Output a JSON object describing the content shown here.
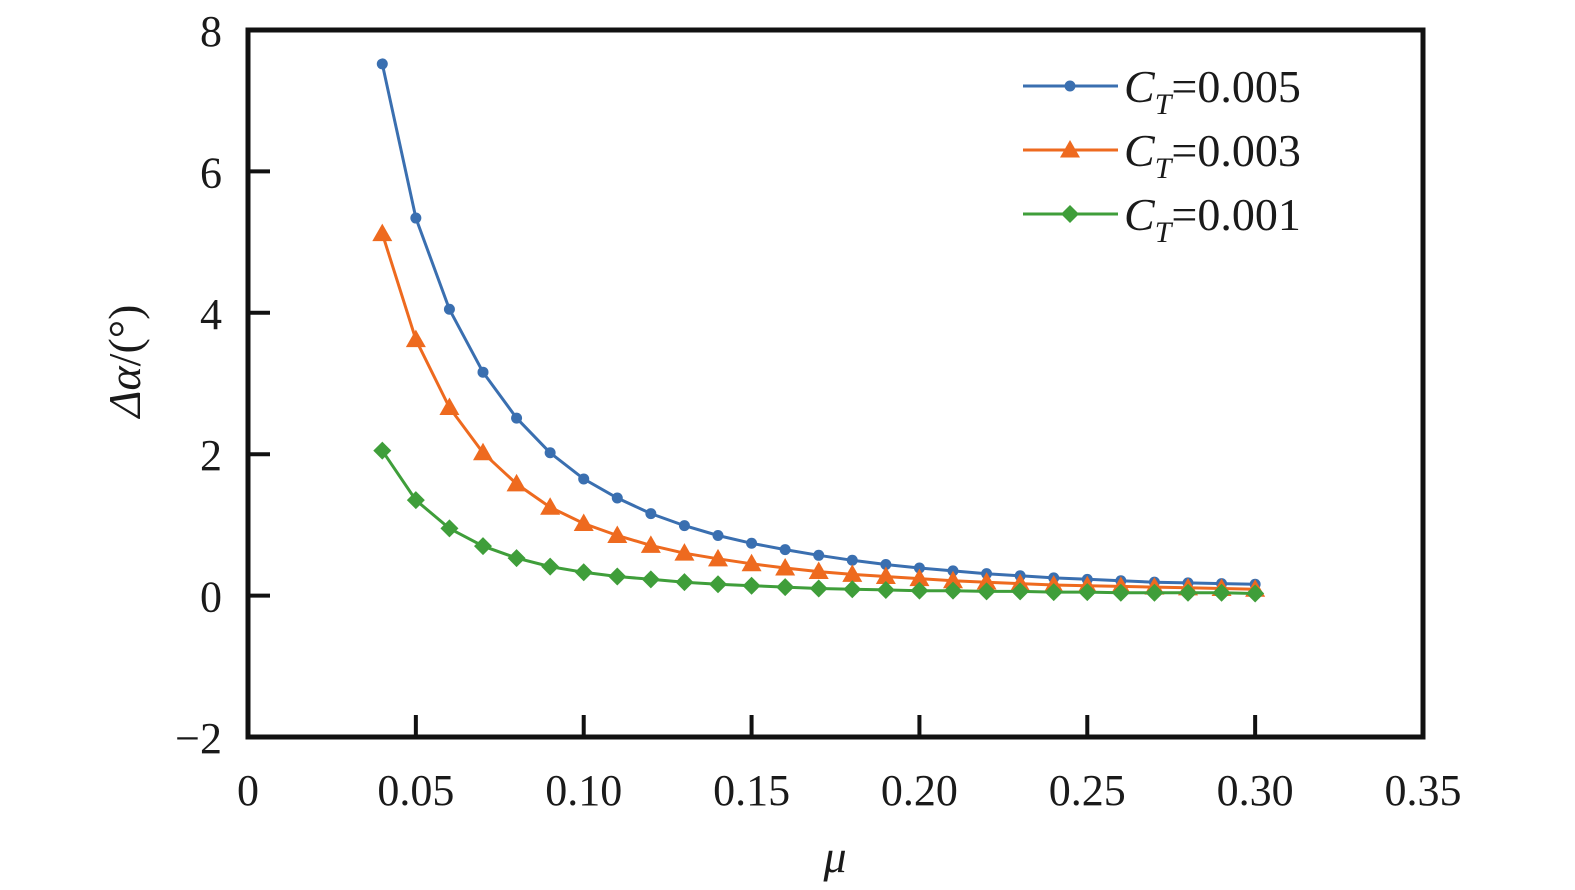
{
  "chart_data": {
    "type": "line",
    "xlabel": "μ",
    "ylabel_symbol": "Δα",
    "ylabel_unit": "/(°)",
    "xlim": [
      0,
      0.35
    ],
    "ylim": [
      -2,
      8
    ],
    "x_ticks": [
      0,
      0.05,
      0.1,
      0.15,
      0.2,
      0.25,
      0.3,
      0.35
    ],
    "x_tick_labels": [
      "0",
      "0.05",
      "0.10",
      "0.15",
      "0.20",
      "0.25",
      "0.30",
      "0.35"
    ],
    "y_ticks": [
      -2,
      0,
      2,
      4,
      6,
      8
    ],
    "y_tick_labels": [
      "−2",
      "0",
      "2",
      "4",
      "6",
      "8"
    ],
    "grid": false,
    "legend_position": "top-right",
    "x": [
      0.04,
      0.05,
      0.06,
      0.07,
      0.08,
      0.09,
      0.1,
      0.11,
      0.12,
      0.13,
      0.14,
      0.15,
      0.16,
      0.17,
      0.18,
      0.19,
      0.2,
      0.21,
      0.22,
      0.23,
      0.24,
      0.25,
      0.26,
      0.27,
      0.28,
      0.29,
      0.3
    ],
    "series": [
      {
        "name_symbol": "C",
        "name_subscript": "T",
        "name_value": "=0.005",
        "color": "#3a6fb0",
        "marker": "circle",
        "values": [
          7.52,
          5.34,
          4.05,
          3.16,
          2.51,
          2.02,
          1.65,
          1.38,
          1.16,
          0.99,
          0.85,
          0.74,
          0.65,
          0.57,
          0.5,
          0.44,
          0.39,
          0.35,
          0.31,
          0.28,
          0.25,
          0.23,
          0.21,
          0.19,
          0.18,
          0.17,
          0.16
        ]
      },
      {
        "name_symbol": "C",
        "name_subscript": "T",
        "name_value": "=0.003",
        "color": "#ee6a1f",
        "marker": "triangle",
        "values": [
          5.12,
          3.62,
          2.66,
          2.02,
          1.58,
          1.25,
          1.02,
          0.85,
          0.71,
          0.6,
          0.52,
          0.45,
          0.39,
          0.34,
          0.3,
          0.27,
          0.24,
          0.21,
          0.19,
          0.17,
          0.15,
          0.14,
          0.13,
          0.12,
          0.11,
          0.1,
          0.09
        ]
      },
      {
        "name_symbol": "C",
        "name_subscript": "T",
        "name_value": "=0.001",
        "color": "#3f9e3a",
        "marker": "diamond",
        "values": [
          2.05,
          1.35,
          0.95,
          0.7,
          0.53,
          0.41,
          0.33,
          0.27,
          0.23,
          0.19,
          0.16,
          0.14,
          0.12,
          0.1,
          0.09,
          0.08,
          0.07,
          0.07,
          0.06,
          0.06,
          0.05,
          0.05,
          0.04,
          0.04,
          0.04,
          0.04,
          0.03
        ]
      }
    ]
  }
}
